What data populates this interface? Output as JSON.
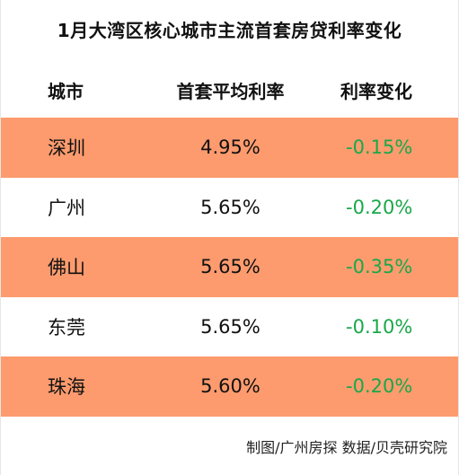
{
  "title": "1月大湾区核心城市主流首套房贷利率变化",
  "headers": {
    "city": "城市",
    "rate": "首套平均利率",
    "change": "利率变化"
  },
  "rows": [
    {
      "city": "深圳",
      "rate": "4.95%",
      "change": "-0.15%"
    },
    {
      "city": "广州",
      "rate": "5.65%",
      "change": "-0.20%"
    },
    {
      "city": "佛山",
      "rate": "5.65%",
      "change": "-0.35%"
    },
    {
      "city": "东莞",
      "rate": "5.65%",
      "change": "-0.10%"
    },
    {
      "city": "珠海",
      "rate": "5.60%",
      "change": "-0.20%"
    }
  ],
  "footer": "制图/广州房探 数据/贝壳研究院",
  "colors": {
    "shaded_row": "#fd9b6e",
    "change_text": "#19a84a"
  },
  "chart_data": {
    "type": "table",
    "title": "1月大湾区核心城市主流首套房贷利率变化",
    "columns": [
      "城市",
      "首套平均利率",
      "利率变化"
    ],
    "rows": [
      [
        "深圳",
        "4.95%",
        "-0.15%"
      ],
      [
        "广州",
        "5.65%",
        "-0.20%"
      ],
      [
        "佛山",
        "5.65%",
        "-0.35%"
      ],
      [
        "东莞",
        "5.65%",
        "-0.10%"
      ],
      [
        "珠海",
        "5.60%",
        "-0.20%"
      ]
    ]
  }
}
